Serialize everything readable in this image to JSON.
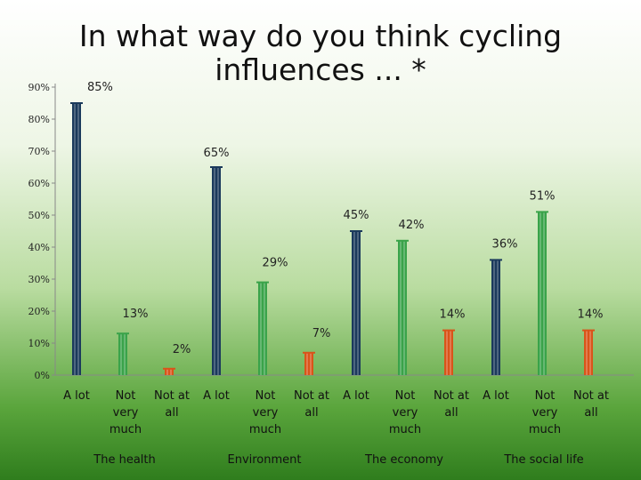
{
  "chart_data": {
    "type": "bar",
    "title": "In what way do you think cycling influences ... *",
    "groups": [
      "The health",
      "Environment",
      "The economy",
      "The social life"
    ],
    "categories": [
      "A lot",
      "Not very much",
      "Not at all"
    ],
    "series": [
      {
        "group": "The health",
        "values": [
          85,
          13,
          2
        ]
      },
      {
        "group": "Environment",
        "values": [
          65,
          29,
          7
        ]
      },
      {
        "group": "The economy",
        "values": [
          45,
          42,
          14
        ]
      },
      {
        "group": "The social life",
        "values": [
          36,
          51,
          14
        ]
      }
    ],
    "data_labels": [
      [
        "85%",
        "13%",
        "2%"
      ],
      [
        "65%",
        "29%",
        "7%"
      ],
      [
        "45%",
        "42%",
        "14%"
      ],
      [
        "36%",
        "51%",
        "14%"
      ]
    ],
    "y_ticks": [
      "0%",
      "10%",
      "20%",
      "30%",
      "40%",
      "50%",
      "60%",
      "70%",
      "80%",
      "90%"
    ],
    "ylim": [
      0,
      90
    ],
    "colors": [
      "#1b3a5c",
      "#3aa34a",
      "#d9541a"
    ],
    "grid": false,
    "legend": "none"
  }
}
